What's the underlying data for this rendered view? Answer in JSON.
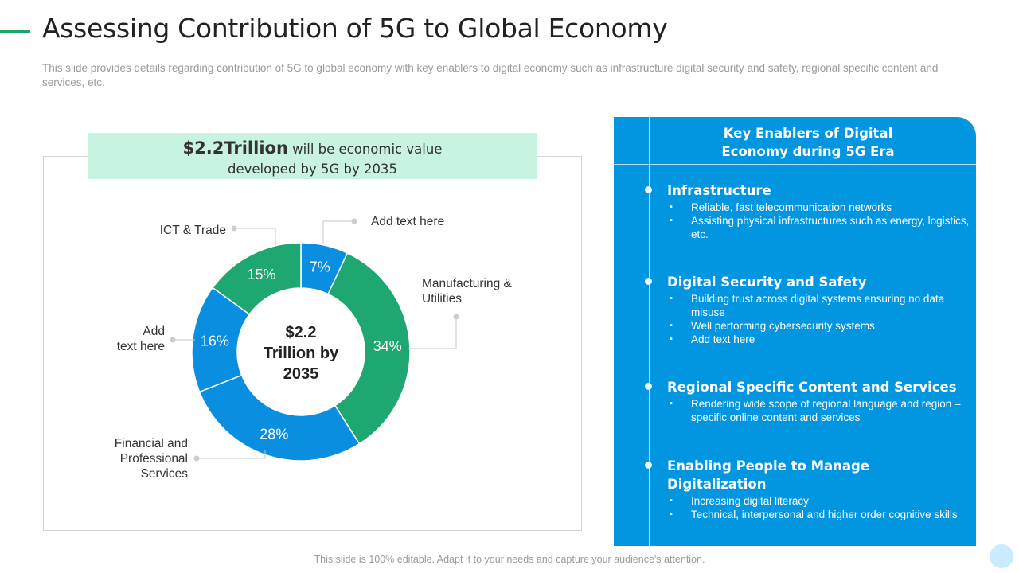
{
  "slide": {
    "title": "Assessing Contribution of 5G to Global Economy",
    "subtitle": "This slide provides details regarding contribution of 5G to global economy with key enablers to digital economy such as infrastructure digital security and safety, regional specific content and services, etc.",
    "footer": "This slide is 100% editable. Adapt it to your needs and capture your audience's attention."
  },
  "callout": {
    "highlight": "$2.2Trillion",
    "text_line1": " will be economic value",
    "text_line2": "developed by 5G by 2035"
  },
  "chart_data": {
    "type": "pie",
    "title": "$2.2 Trillion by 2035",
    "center_label": [
      "$2.2",
      "Trillion by",
      "2035"
    ],
    "start_angle_deg": 0,
    "categories": [
      "Add text here",
      "Manufacturing & Utilities",
      "Financial and Professional Services",
      "Add text here",
      "ICT & Trade"
    ],
    "category_label_lines": [
      [
        "Add text here"
      ],
      [
        "Manufacturing &",
        "Utilities"
      ],
      [
        "Financial and",
        "Professional",
        "Services"
      ],
      [
        "Add",
        "text here"
      ],
      [
        "ICT & Trade"
      ]
    ],
    "values": [
      7,
      34,
      28,
      16,
      15
    ],
    "value_labels": [
      "7%",
      "34%",
      "28%",
      "16%",
      "15%"
    ],
    "colors": [
      "#0a8fe0",
      "#1ea770",
      "#0a8fe0",
      "#0a8fe0",
      "#1ea770"
    ]
  },
  "panel": {
    "title_line1": "Key Enablers of Digital",
    "title_line2": "Economy during 5G Era",
    "sections": [
      {
        "heading": "Infrastructure",
        "bullets": [
          "Reliable, fast telecommunication networks",
          "Assisting physical infrastructures such as energy, logistics, etc."
        ]
      },
      {
        "heading": "Digital Security and Safety",
        "bullets": [
          "Building trust across digital systems ensuring no data misuse",
          "Well performing cybersecurity systems",
          "Add text here"
        ]
      },
      {
        "heading": "Regional Specific Content and Services",
        "bullets": [
          "Rendering wide scope of regional language and region – specific online content and services"
        ]
      },
      {
        "heading": "Enabling People to Manage Digitalization",
        "bullets": [
          "Increasing digital literacy",
          "Technical, interpersonal and higher order cognitive skills"
        ]
      }
    ]
  }
}
